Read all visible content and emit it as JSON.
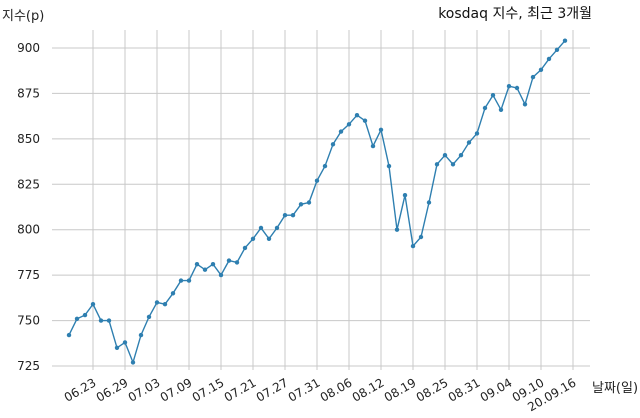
{
  "chart_data": {
    "type": "line",
    "title": "kosdaq 지수, 최근 3개월",
    "ylabel": "지수(p)",
    "xlabel": "날짜(일)",
    "ylim": [
      725,
      905
    ],
    "yticks": [
      725,
      750,
      775,
      800,
      825,
      850,
      875,
      900
    ],
    "xtick_labels": [
      "06.23",
      "06.29",
      "07.03",
      "07.09",
      "07.15",
      "07.21",
      "07.27",
      "07.31",
      "08.06",
      "08.12",
      "08.19",
      "08.25",
      "08.31",
      "09.04",
      "09.10",
      "20.09.16"
    ],
    "xtick_index": [
      3,
      7,
      11,
      15,
      19,
      23,
      27,
      31,
      35,
      39,
      43,
      47,
      51,
      55,
      59,
      63
    ],
    "grid": true,
    "line_color": "#2e7fb0",
    "series": [
      {
        "values": [
          742,
          751,
          753,
          759,
          750,
          750,
          735,
          738,
          727,
          742,
          752,
          760,
          759,
          765,
          772,
          772,
          781,
          778,
          781,
          775,
          783,
          782,
          790,
          795,
          801,
          795,
          801,
          808,
          808,
          814,
          815,
          827,
          835,
          847,
          854,
          858,
          863,
          860,
          846,
          855,
          835,
          800,
          819,
          791,
          796,
          815,
          836,
          841,
          836,
          841,
          848,
          853,
          867,
          874,
          866,
          879,
          878,
          869,
          884,
          888,
          894,
          899,
          904
        ]
      }
    ]
  }
}
